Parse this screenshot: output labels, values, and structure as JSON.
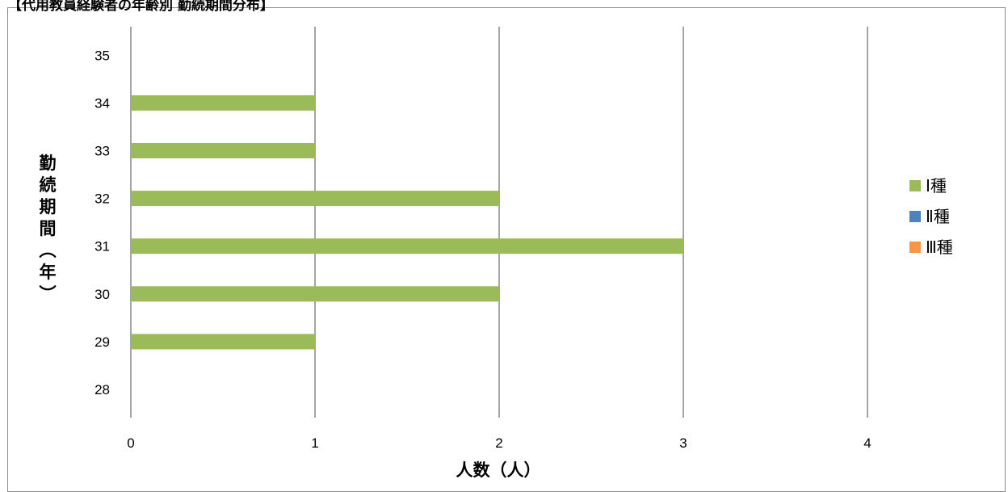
{
  "chart_data": {
    "type": "bar",
    "orientation": "horizontal",
    "title": "【代用教員経験者の年齢別 勤続期間分布】",
    "xlabel": "人数（人）",
    "ylabel": "勤続期間（年）",
    "xlim": [
      0,
      4
    ],
    "x_ticks": [
      "0",
      "1",
      "2",
      "3",
      "4"
    ],
    "categories": [
      "28",
      "29",
      "30",
      "31",
      "32",
      "33",
      "34",
      "35"
    ],
    "series": [
      {
        "name": "Ⅰ種",
        "color": "#9bbb59",
        "values": [
          0,
          1,
          2,
          3,
          2,
          1,
          1,
          0
        ]
      },
      {
        "name": "Ⅱ種",
        "color": "#4f81bd",
        "values": [
          0,
          0,
          0,
          0,
          0,
          0,
          0,
          0
        ]
      },
      {
        "name": "Ⅲ種",
        "color": "#f79646",
        "values": [
          0,
          0,
          0,
          0,
          0,
          0,
          0,
          0
        ]
      }
    ],
    "grid": true,
    "legend_position": "right"
  }
}
